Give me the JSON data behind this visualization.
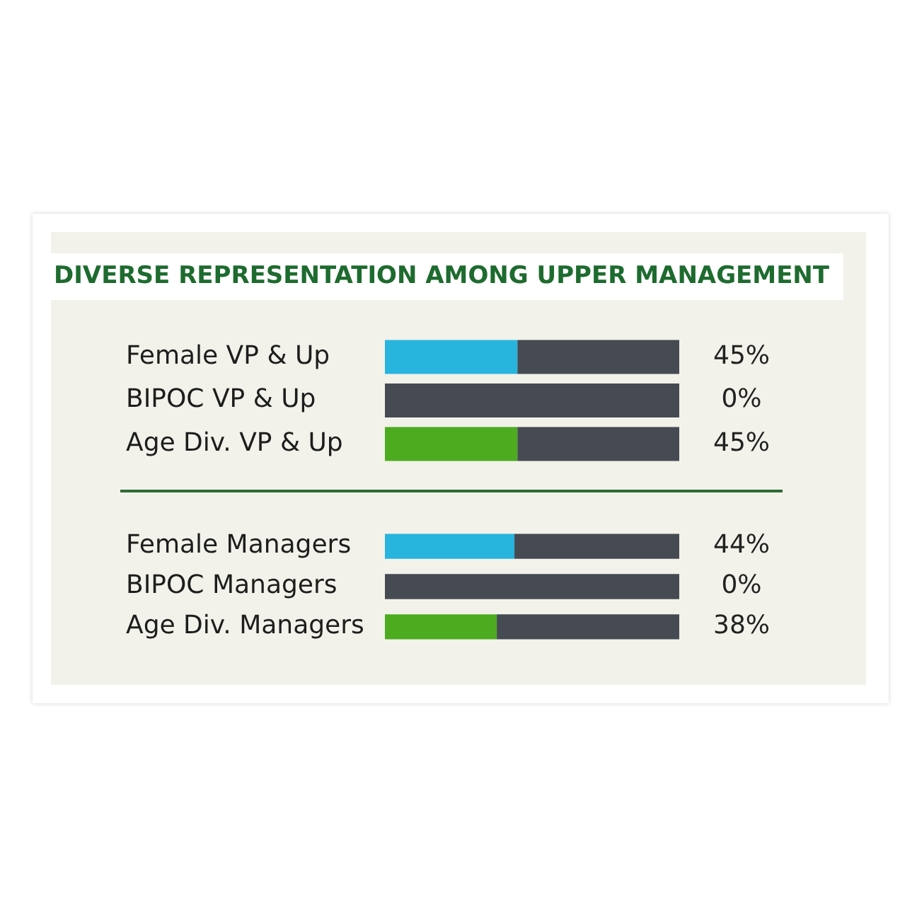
{
  "chart_data": [
    {
      "type": "bar",
      "orientation": "horizontal",
      "stacked": true,
      "title": "DIVERSE REPRESENTATION AMONG UPPER MANAGEMENT",
      "categories": [
        "Female VP & Up",
        "BIPOC VP & Up",
        "Age Div. VP & Up"
      ],
      "series": [
        {
          "colors": [
            "#27b4dd",
            "#454a53",
            "#4cab1f"
          ],
          "values": [
            45,
            0,
            45
          ],
          "value_labels": [
            "45%",
            "0%",
            "45%"
          ]
        },
        {
          "color": "#454a53",
          "values": [
            55,
            100,
            55
          ]
        }
      ],
      "xlim": [
        0,
        100
      ],
      "tick_labels": "y"
    },
    {
      "type": "bar",
      "orientation": "horizontal",
      "stacked": true,
      "categories": [
        "Female Managers",
        "BIPOC Managers",
        "Age Div. Managers"
      ],
      "series": [
        {
          "colors": [
            "#27b4dd",
            "#454a53",
            "#4cab1f"
          ],
          "values": [
            44,
            0,
            38
          ],
          "value_labels": [
            "44%",
            "0%",
            "38%"
          ]
        },
        {
          "color": "#454a53",
          "values": [
            56,
            100,
            62
          ]
        }
      ],
      "xlim": [
        0,
        100
      ],
      "tick_labels": "y"
    }
  ]
}
